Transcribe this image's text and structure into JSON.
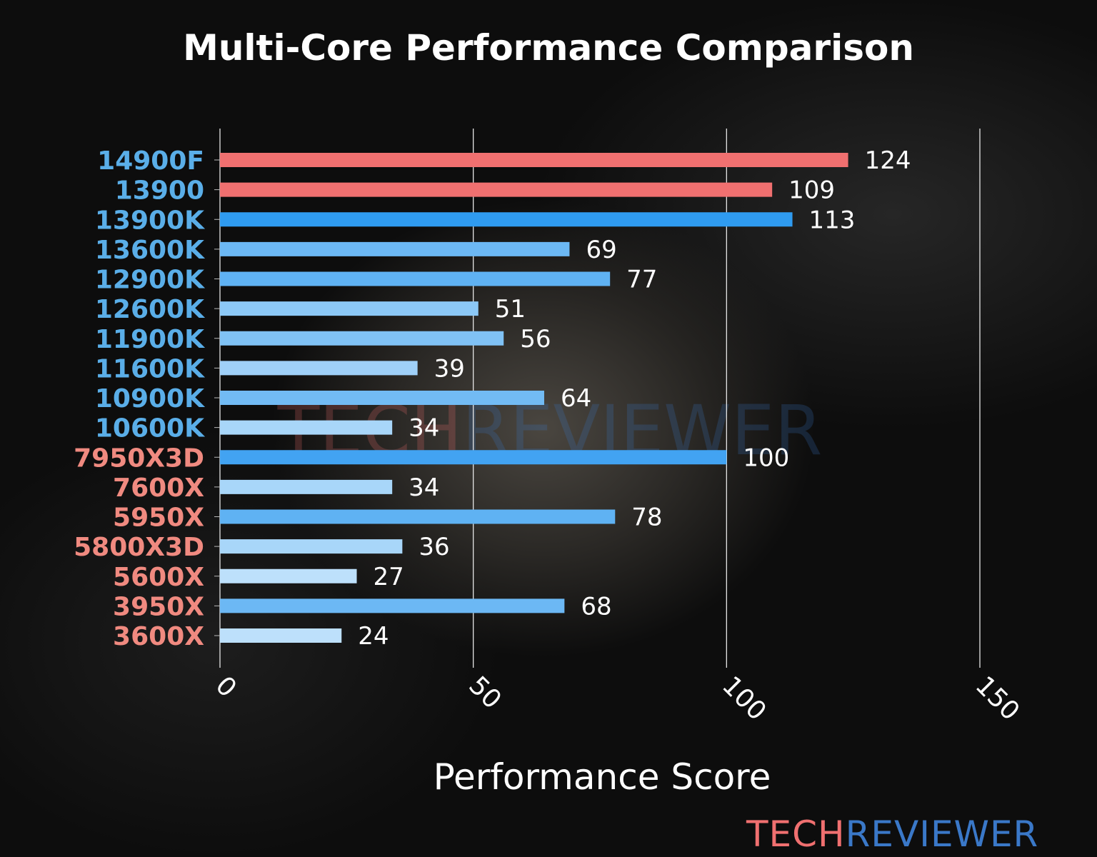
{
  "chart_data": {
    "type": "bar",
    "orientation": "horizontal",
    "title": "Multi-Core Performance Comparison",
    "xlabel": "Performance Score",
    "ylabel": "",
    "xlim": [
      0,
      150
    ],
    "xticks": [
      "0",
      "50",
      "100",
      "150"
    ],
    "grid": "vertical",
    "categories": [
      "14900F",
      "13900",
      "13900K",
      "13600K",
      "12900K",
      "12600K",
      "11900K",
      "11600K",
      "10900K",
      "10600K",
      "7950X3D",
      "7600X",
      "5950X",
      "5800X3D",
      "5600X",
      "3950X",
      "3600X"
    ],
    "values": [
      124,
      109,
      113,
      69,
      77,
      51,
      56,
      39,
      64,
      34,
      100,
      34,
      78,
      36,
      27,
      68,
      24
    ],
    "bar_colors": [
      "#f07070",
      "#f07070",
      "#2f9bf0",
      "#6cb8f4",
      "#5fb2f3",
      "#8cc8f6",
      "#80c2f5",
      "#9fd0f8",
      "#72bbf4",
      "#a8d6f9",
      "#42a3f2",
      "#a8d6f9",
      "#5fb2f3",
      "#a8d6f9",
      "#bde0fb",
      "#6cb8f4",
      "#bde0fb"
    ],
    "label_colors": [
      "#5aaee8",
      "#5aaee8",
      "#5aaee8",
      "#5aaee8",
      "#5aaee8",
      "#5aaee8",
      "#5aaee8",
      "#5aaee8",
      "#5aaee8",
      "#5aaee8",
      "#f08a80",
      "#f08a80",
      "#f08a80",
      "#f08a80",
      "#f08a80",
      "#f08a80",
      "#f08a80"
    ]
  },
  "branding": {
    "logo_part1": "TECH",
    "logo_part2": "REVIEWER",
    "logo_color1": "#f07070",
    "logo_color2": "#3a78c8"
  }
}
